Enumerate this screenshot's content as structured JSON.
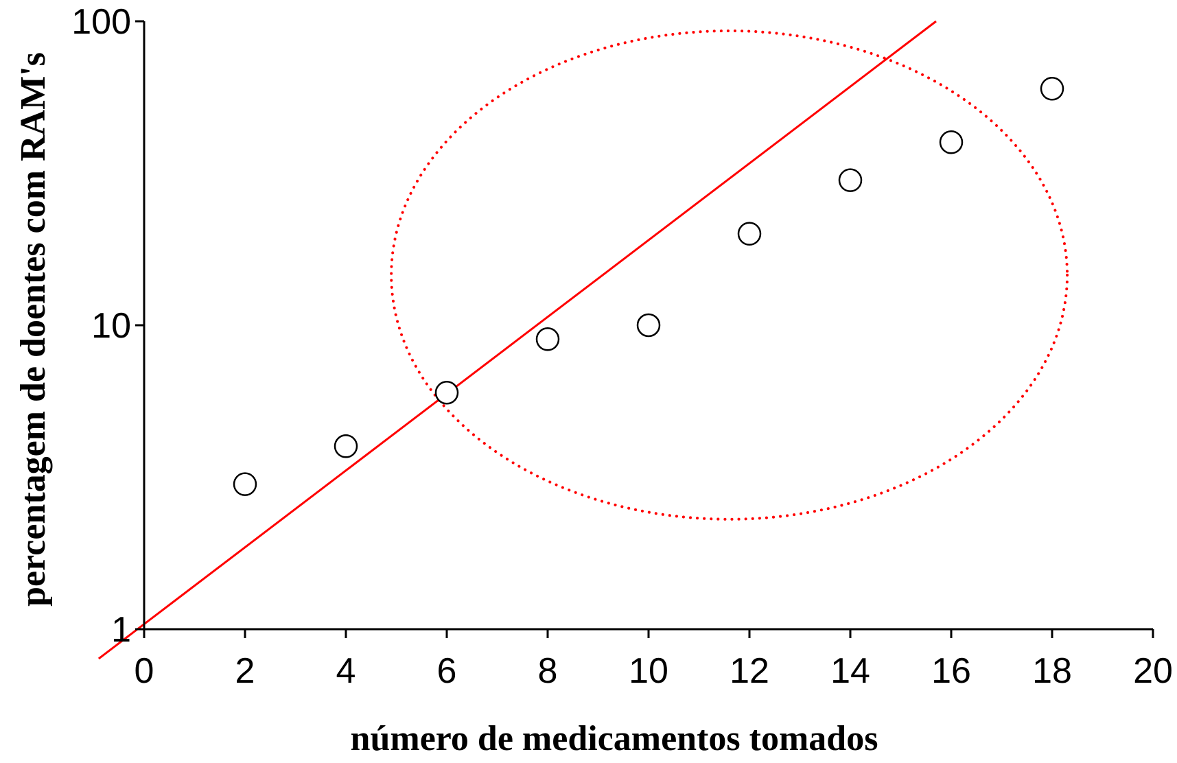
{
  "chart_data": {
    "type": "scatter",
    "title": "",
    "xlabel": "número de medicamentos tomados",
    "ylabel": "percentagem de doentes com RAM's",
    "xlim": [
      0,
      20
    ],
    "ylim": [
      1,
      100
    ],
    "yscale": "log",
    "x_ticks": [
      "0",
      "2",
      "4",
      "6",
      "8",
      "10",
      "12",
      "14",
      "16",
      "18",
      "20"
    ],
    "y_ticks": [
      "1",
      "10",
      "100"
    ],
    "grid": false,
    "legend": "none",
    "points": [
      {
        "x": 2,
        "y": 3.0
      },
      {
        "x": 4,
        "y": 4.0
      },
      {
        "x": 6,
        "y": 6.0
      },
      {
        "x": 8,
        "y": 9.0
      },
      {
        "x": 10,
        "y": 10.0
      },
      {
        "x": 12,
        "y": 20.0
      },
      {
        "x": 14,
        "y": 30.0
      },
      {
        "x": 16,
        "y": 40.0
      },
      {
        "x": 18,
        "y": 60.0
      }
    ],
    "trend_line": {
      "start": {
        "x": -0.9,
        "y": 0.8
      },
      "end": {
        "x": 15.7,
        "y": 100
      }
    },
    "highlight_ellipse": {
      "center": {
        "x": 11.6,
        "y": 15
      },
      "x_radius": 6.7,
      "y_top": 93,
      "y_bottom": 2.3
    },
    "colors": {
      "axis": "#000000",
      "marker": "#000000",
      "trend_line": "#ff0000",
      "ellipse": "#ff0000"
    }
  }
}
